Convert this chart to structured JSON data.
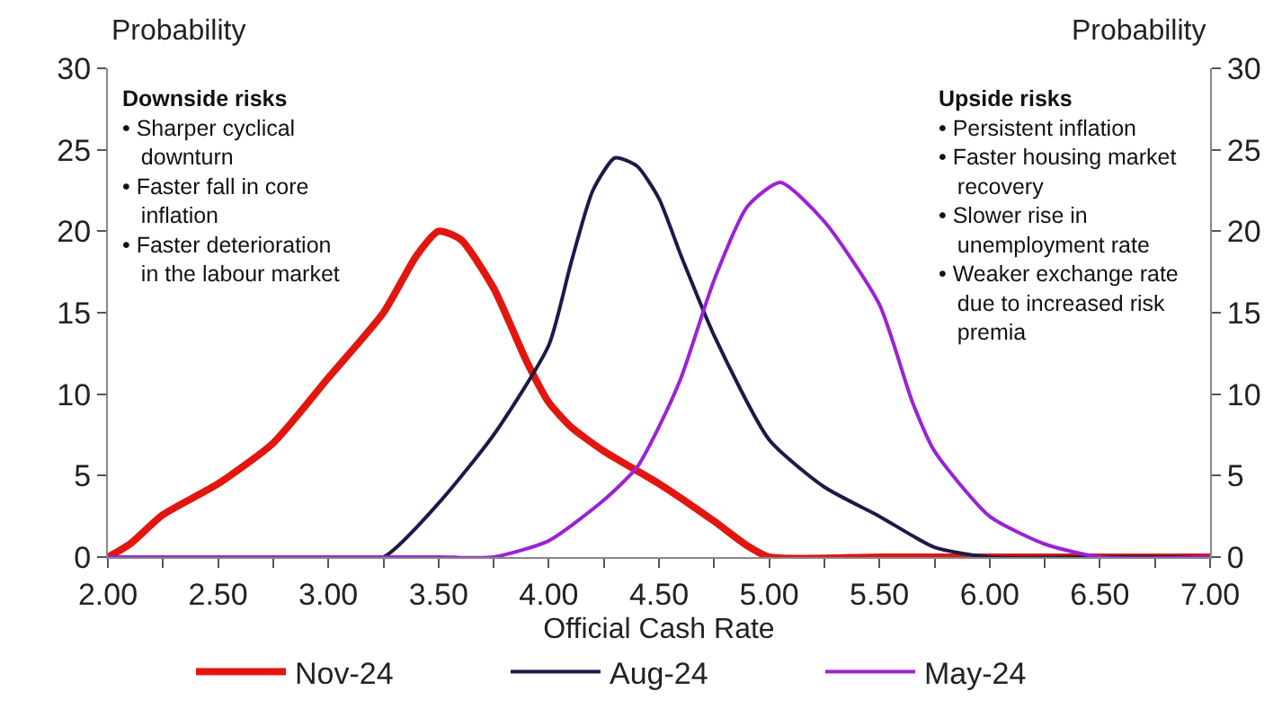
{
  "chart_data": {
    "type": "line",
    "xlabel": "Official Cash Rate",
    "ylabel": "Probability",
    "y2label": "Probability",
    "annotations": [
      "Downside risks\n• Sharper cyclical\n   downturn\n• Faster fall in core\n   inflation\n• Faster deterioration\n   in the labour market",
      "Upside risks\n• Persistent inflation\n• Faster housing market\n   recovery\n• Slower rise in\n   unemployment rate\n• Weaker exchange rate\n   due to increased risk\n   premia"
    ],
    "series": [
      {
        "name": "Nov-24",
        "color": "#e2160f",
        "x": [
          2.0,
          2.1,
          2.25,
          2.5,
          2.75,
          3.0,
          3.25,
          3.4,
          3.5,
          3.6,
          3.75,
          3.9,
          4.0,
          4.1,
          4.25,
          4.5,
          4.75,
          4.9,
          5.0,
          5.5,
          6.0,
          6.5,
          7.0
        ],
        "values": [
          0,
          0.8,
          2.6,
          4.5,
          7,
          11,
          15,
          18.5,
          20,
          19.5,
          16.5,
          12,
          9.5,
          8,
          6.5,
          4.5,
          2.2,
          0.7,
          0,
          0,
          0,
          0,
          0
        ]
      },
      {
        "name": "Aug-24",
        "color": "#1c1a4a",
        "x": [
          2.0,
          2.5,
          3.0,
          3.25,
          3.5,
          3.75,
          4.0,
          4.1,
          4.2,
          4.3,
          4.4,
          4.5,
          4.6,
          4.75,
          5.0,
          5.25,
          5.5,
          5.75,
          6.0,
          6.5,
          7.0
        ],
        "values": [
          0,
          0,
          0,
          0,
          3.3,
          7.5,
          13,
          18,
          22.5,
          24.5,
          24,
          22,
          18.5,
          13.6,
          7.2,
          4.3,
          2.5,
          0.6,
          0,
          0,
          0
        ]
      },
      {
        "name": "May-24",
        "color": "#9b22d6",
        "x": [
          2.0,
          2.5,
          3.0,
          3.5,
          3.75,
          4.0,
          4.25,
          4.4,
          4.5,
          4.6,
          4.75,
          4.9,
          5.05,
          5.25,
          5.5,
          5.65,
          5.75,
          6.0,
          6.25,
          6.5,
          7.0
        ],
        "values": [
          0,
          0,
          0,
          0,
          0,
          1,
          3.5,
          5.5,
          8,
          11,
          17,
          21.5,
          23,
          20.6,
          15.5,
          9.5,
          6.5,
          2.5,
          0.8,
          0,
          0
        ]
      }
    ],
    "xlim": [
      2.0,
      7.0
    ],
    "xticks": [
      {
        "value": 2.0,
        "label": "2.00"
      },
      {
        "value": 2.25,
        "label": null
      },
      {
        "value": 2.5,
        "label": "2.50"
      },
      {
        "value": 2.75,
        "label": null
      },
      {
        "value": 3.0,
        "label": "3.00"
      },
      {
        "value": 3.25,
        "label": null
      },
      {
        "value": 3.5,
        "label": "3.50"
      },
      {
        "value": 3.75,
        "label": null
      },
      {
        "value": 4.0,
        "label": "4.00"
      },
      {
        "value": 4.25,
        "label": null
      },
      {
        "value": 4.5,
        "label": "4.50"
      },
      {
        "value": 4.75,
        "label": null
      },
      {
        "value": 5.0,
        "label": "5.00"
      },
      {
        "value": 5.25,
        "label": null
      },
      {
        "value": 5.5,
        "label": "5.50"
      },
      {
        "value": 5.75,
        "label": null
      },
      {
        "value": 6.0,
        "label": "6.00"
      },
      {
        "value": 6.25,
        "label": null
      },
      {
        "value": 6.5,
        "label": "6.50"
      },
      {
        "value": 6.75,
        "label": null
      },
      {
        "value": 7.0,
        "label": "7.00"
      }
    ],
    "ylim": [
      0,
      30
    ],
    "yticks": [
      0,
      5,
      10,
      15,
      20,
      25,
      30
    ],
    "y2lim": [
      0,
      30
    ],
    "y2ticks": [
      0,
      5,
      10,
      15,
      20,
      25,
      30
    ],
    "legend": "bottom",
    "marker": "none",
    "line_style": "solid"
  }
}
